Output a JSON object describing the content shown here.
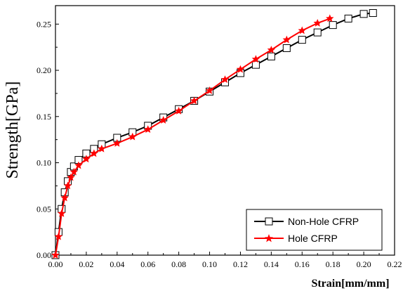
{
  "chart_data": {
    "type": "line",
    "xlabel": "Strain[mm/mm]",
    "ylabel": "Strength[GPa]",
    "xlim": [
      0.0,
      0.22
    ],
    "ylim": [
      0.0,
      0.27
    ],
    "x_ticks": [
      "0.00",
      "0.02",
      "0.04",
      "0.06",
      "0.08",
      "0.10",
      "0.12",
      "0.14",
      "0.16",
      "0.18",
      "0.20",
      "0.22"
    ],
    "y_ticks": [
      "0.00",
      "0.05",
      "0.10",
      "0.15",
      "0.20",
      "0.25"
    ],
    "grid": false,
    "legend_position": "bottom-right",
    "series": [
      {
        "name": "Non-Hole CFRP",
        "color": "#000000",
        "marker": "square",
        "x": [
          0.0,
          0.002,
          0.004,
          0.006,
          0.008,
          0.01,
          0.012,
          0.015,
          0.02,
          0.025,
          0.03,
          0.04,
          0.05,
          0.06,
          0.07,
          0.08,
          0.09,
          0.1,
          0.11,
          0.12,
          0.13,
          0.14,
          0.15,
          0.16,
          0.17,
          0.18,
          0.19,
          0.2,
          0.206
        ],
        "y": [
          0.0,
          0.025,
          0.05,
          0.068,
          0.08,
          0.09,
          0.096,
          0.103,
          0.11,
          0.115,
          0.12,
          0.127,
          0.133,
          0.14,
          0.149,
          0.158,
          0.167,
          0.177,
          0.187,
          0.197,
          0.206,
          0.215,
          0.224,
          0.233,
          0.241,
          0.249,
          0.256,
          0.261,
          0.262
        ]
      },
      {
        "name": "Hole CFRP",
        "color": "#ff0000",
        "marker": "star",
        "x": [
          0.0,
          0.002,
          0.004,
          0.006,
          0.008,
          0.01,
          0.012,
          0.015,
          0.02,
          0.025,
          0.03,
          0.04,
          0.05,
          0.06,
          0.07,
          0.08,
          0.09,
          0.1,
          0.11,
          0.12,
          0.13,
          0.14,
          0.15,
          0.16,
          0.17,
          0.178
        ],
        "y": [
          0.0,
          0.02,
          0.045,
          0.062,
          0.075,
          0.084,
          0.09,
          0.097,
          0.104,
          0.11,
          0.115,
          0.121,
          0.128,
          0.136,
          0.146,
          0.156,
          0.167,
          0.178,
          0.19,
          0.201,
          0.212,
          0.222,
          0.233,
          0.243,
          0.251,
          0.256
        ]
      }
    ]
  }
}
